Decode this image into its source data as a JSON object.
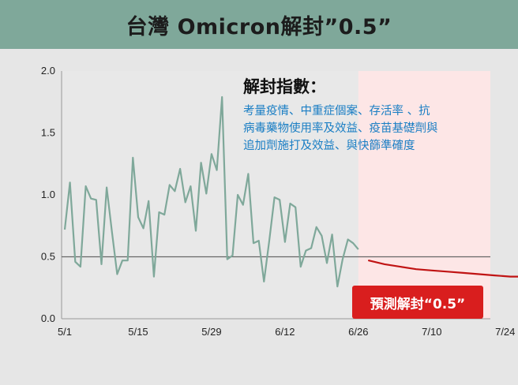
{
  "title": "台灣 Omicron解封”0.5”",
  "annotation": {
    "title": "解封指數：",
    "lines": [
      "考量疫情、中重症個案、存活率 、抗",
      "病毒藥物使用率及效益、疫苗基礎劑與",
      "追加劑施打及效益、與快篩準確度"
    ]
  },
  "forecast_label": "預測解封“0.5”",
  "colors": {
    "title_bar": "#7fa89a",
    "observed_line": "#7fa89a",
    "forecast_line": "#c01414",
    "forecast_region": "#fde6e6",
    "reference_line": "#666666",
    "badge": "#d91e1e",
    "annotation_text": "#1a7ec4"
  },
  "chart_data": {
    "type": "line",
    "title": "",
    "xlabel": "",
    "ylabel": "",
    "ylim": [
      0.0,
      2.0
    ],
    "y_ticks": [
      "0.0",
      "0.5",
      "1.0",
      "1.5",
      "2.0"
    ],
    "x_tick_labels": [
      "5/1",
      "5/15",
      "5/29",
      "6/12",
      "6/26",
      "7/10",
      "7/24"
    ],
    "grid": false,
    "reference_line": 0.5,
    "forecast_region_start": "6/26",
    "series": [
      {
        "role": "observed",
        "x": [
          "5/1",
          "5/2",
          "5/3",
          "5/4",
          "5/5",
          "5/6",
          "5/7",
          "5/8",
          "5/9",
          "5/10",
          "5/11",
          "5/12",
          "5/13",
          "5/14",
          "5/15",
          "5/16",
          "5/17",
          "5/18",
          "5/19",
          "5/20",
          "5/21",
          "5/22",
          "5/23",
          "5/24",
          "5/25",
          "5/26",
          "5/27",
          "5/28",
          "5/29",
          "5/30",
          "5/31",
          "6/1",
          "6/2",
          "6/3",
          "6/4",
          "6/5",
          "6/6",
          "6/7",
          "6/8",
          "6/9",
          "6/10",
          "6/11",
          "6/12",
          "6/13",
          "6/14",
          "6/15",
          "6/16",
          "6/17",
          "6/18",
          "6/19",
          "6/20",
          "6/21",
          "6/22",
          "6/23",
          "6/24",
          "6/25",
          "6/26"
        ],
        "values": [
          0.72,
          1.1,
          0.46,
          0.42,
          1.07,
          0.97,
          0.96,
          0.44,
          1.06,
          0.7,
          0.36,
          0.47,
          0.47,
          1.3,
          0.82,
          0.73,
          0.95,
          0.34,
          0.86,
          0.84,
          1.08,
          1.03,
          1.21,
          0.94,
          1.07,
          0.71,
          1.26,
          1.01,
          1.33,
          1.2,
          1.79,
          0.48,
          0.51,
          1.0,
          0.92,
          1.17,
          0.61,
          0.63,
          0.3,
          0.63,
          0.98,
          0.96,
          0.62,
          0.93,
          0.9,
          0.42,
          0.55,
          0.57,
          0.74,
          0.67,
          0.45,
          0.68,
          0.26,
          0.48,
          0.64,
          0.61,
          0.56
        ]
      },
      {
        "role": "forecast",
        "x": [
          "6/28",
          "7/1",
          "7/4",
          "7/7",
          "7/10",
          "7/13",
          "7/16",
          "7/19",
          "7/22",
          "7/25",
          "7/27"
        ],
        "values": [
          0.47,
          0.44,
          0.42,
          0.4,
          0.39,
          0.38,
          0.37,
          0.36,
          0.35,
          0.34,
          0.34
        ]
      }
    ]
  }
}
